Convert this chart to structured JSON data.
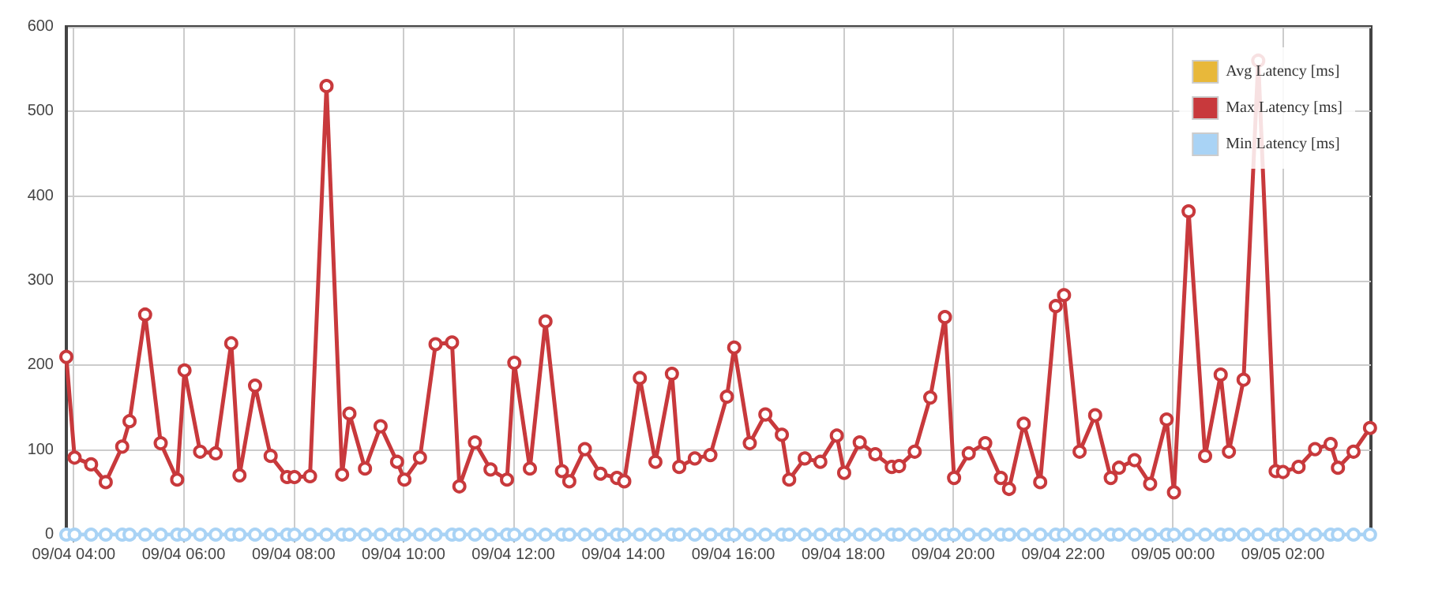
{
  "chart_data": {
    "type": "line",
    "x": [
      "--09-04T03:52",
      "--09-04T04:01",
      "--09-04T04:19",
      "--09-04T04:35",
      "--09-04T04:53",
      "--09-04T05:01",
      "--09-04T05:18",
      "--09-04T05:35",
      "--09-04T05:53",
      "--09-04T06:01",
      "--09-04T06:18",
      "--09-04T06:35",
      "--09-04T06:52",
      "--09-04T07:01",
      "--09-04T07:18",
      "--09-04T07:35",
      "--09-04T07:53",
      "--09-04T08:01",
      "--09-04T08:18",
      "--09-04T08:36",
      "--09-04T08:53",
      "--09-04T09:01",
      "--09-04T09:18",
      "--09-04T09:35",
      "--09-04T09:53",
      "--09-04T10:01",
      "--09-04T10:18",
      "--09-04T10:35",
      "--09-04T10:53",
      "--09-04T11:01",
      "--09-04T11:18",
      "--09-04T11:35",
      "--09-04T11:53",
      "--09-04T12:01",
      "--09-04T12:18",
      "--09-04T12:35",
      "--09-04T12:53",
      "--09-04T13:01",
      "--09-04T13:18",
      "--09-04T13:35",
      "--09-04T13:53",
      "--09-04T14:01",
      "--09-04T14:18",
      "--09-04T14:35",
      "--09-04T14:53",
      "--09-04T15:01",
      "--09-04T15:18",
      "--09-04T15:35",
      "--09-04T15:53",
      "--09-04T16:01",
      "--09-04T16:18",
      "--09-04T16:35",
      "--09-04T16:53",
      "--09-04T17:01",
      "--09-04T17:18",
      "--09-04T17:35",
      "--09-04T17:53",
      "--09-04T18:01",
      "--09-04T18:18",
      "--09-04T18:35",
      "--09-04T18:53",
      "--09-04T19:01",
      "--09-04T19:18",
      "--09-04T19:35",
      "--09-04T19:51",
      "--09-04T20:01",
      "--09-04T20:17",
      "--09-04T20:35",
      "--09-04T20:52",
      "--09-04T21:01",
      "--09-04T21:17",
      "--09-04T21:35",
      "--09-04T21:52",
      "--09-04T22:01",
      "--09-04T22:18",
      "--09-04T22:35",
      "--09-04T22:52",
      "--09-04T23:01",
      "--09-04T23:18",
      "--09-04T23:35",
      "--09-04T23:53",
      "--09-05T00:01",
      "--09-05T00:17",
      "--09-05T00:35",
      "--09-05T00:52",
      "--09-05T01:01",
      "--09-05T01:17",
      "--09-05T01:33",
      "--09-05T01:52",
      "--09-05T02:00",
      "--09-05T02:17",
      "--09-05T02:35",
      "--09-05T02:52",
      "--09-05T03:00",
      "--09-05T03:17",
      "--09-05T03:35"
    ],
    "series": [
      {
        "name": "Avg Latency [ms]",
        "color": "#e8b83a",
        "values": [
          null,
          null,
          null,
          null,
          null,
          null,
          null,
          null,
          null,
          null,
          null,
          null,
          null,
          null,
          null,
          null,
          null,
          null,
          null,
          null,
          null,
          null,
          null,
          null,
          null,
          null,
          null,
          null,
          null,
          null,
          null,
          null,
          null,
          null,
          null,
          null,
          null,
          null,
          null,
          null,
          null,
          null,
          null,
          null,
          null,
          null,
          null,
          null,
          null,
          null,
          null,
          null,
          null,
          null,
          null,
          null,
          null,
          null,
          null,
          null,
          null,
          null,
          null,
          null,
          null,
          null,
          null,
          null,
          null,
          null,
          null,
          null,
          null,
          null,
          null,
          null,
          null,
          null,
          null,
          null,
          null,
          null,
          null,
          null,
          null,
          null,
          null,
          null,
          null,
          null,
          null,
          null,
          null,
          null,
          null,
          null
        ]
      },
      {
        "name": "Max Latency [ms]",
        "color": "#c8393c",
        "values": [
          210,
          91,
          83,
          62,
          104,
          134,
          260,
          108,
          65,
          194,
          98,
          96,
          226,
          70,
          176,
          93,
          68,
          68,
          69,
          530,
          71,
          143,
          78,
          128,
          86,
          65,
          91,
          225,
          227,
          57,
          109,
          77,
          65,
          203,
          78,
          252,
          75,
          63,
          101,
          72,
          67,
          63,
          185,
          86,
          190,
          80,
          90,
          94,
          163,
          221,
          108,
          142,
          118,
          65,
          90,
          86,
          117,
          73,
          109,
          95,
          80,
          81,
          98,
          162,
          257,
          67,
          96,
          108,
          67,
          54,
          131,
          62,
          270,
          283,
          98,
          141,
          67,
          79,
          88,
          60,
          136,
          50,
          382,
          93,
          189,
          98,
          183,
          560,
          75,
          74,
          80,
          101,
          107,
          79,
          98,
          126
        ]
      },
      {
        "name": "Min Latency [ms]",
        "color": "#a9d3f5",
        "values": [
          0,
          0,
          0,
          0,
          0,
          0,
          0,
          0,
          0,
          0,
          0,
          0,
          0,
          0,
          0,
          0,
          0,
          0,
          0,
          0,
          0,
          0,
          0,
          0,
          0,
          0,
          0,
          0,
          0,
          0,
          0,
          0,
          0,
          0,
          0,
          0,
          0,
          0,
          0,
          0,
          0,
          0,
          0,
          0,
          0,
          0,
          0,
          0,
          0,
          0,
          0,
          0,
          0,
          0,
          0,
          0,
          0,
          0,
          0,
          0,
          0,
          0,
          0,
          0,
          0,
          0,
          0,
          0,
          0,
          0,
          0,
          0,
          0,
          0,
          0,
          0,
          0,
          0,
          0,
          0,
          0,
          0,
          0,
          0,
          0,
          0,
          0,
          0,
          0,
          0,
          0,
          0,
          0,
          0,
          0,
          0
        ]
      }
    ],
    "xlim": [
      "--09-04T03:52",
      "--09-05T03:36"
    ],
    "xticks": [
      {
        "value": "--09-04T04:00",
        "label": "09/04 04:00"
      },
      {
        "value": "--09-04T06:00",
        "label": "09/04 06:00"
      },
      {
        "value": "--09-04T08:00",
        "label": "09/04 08:00"
      },
      {
        "value": "--09-04T10:00",
        "label": "09/04 10:00"
      },
      {
        "value": "--09-04T12:00",
        "label": "09/04 12:00"
      },
      {
        "value": "--09-04T14:00",
        "label": "09/04 14:00"
      },
      {
        "value": "--09-04T16:00",
        "label": "09/04 16:00"
      },
      {
        "value": "--09-04T18:00",
        "label": "09/04 18:00"
      },
      {
        "value": "--09-04T20:00",
        "label": "09/04 20:00"
      },
      {
        "value": "--09-04T22:00",
        "label": "09/04 22:00"
      },
      {
        "value": "--09-05T00:00",
        "label": "09/05 00:00"
      },
      {
        "value": "--09-05T02:00",
        "label": "09/05 02:00"
      }
    ],
    "ylim": [
      0,
      600
    ],
    "yticks": [
      0,
      100,
      200,
      300,
      400,
      500,
      600
    ],
    "grid": true,
    "legend": "top right",
    "marker": "circle",
    "line_style": "solid"
  }
}
